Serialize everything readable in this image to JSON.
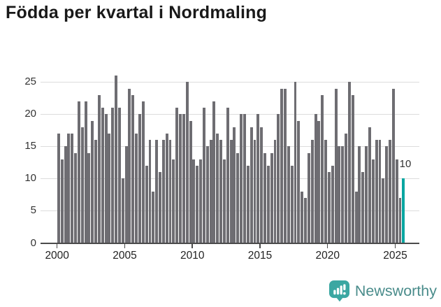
{
  "header": {
    "title": "Födda per kvartal i Nordmaling"
  },
  "footer": {
    "brand": "Newsworthy"
  },
  "colors": {
    "bar": "#6e6d72",
    "highlight": "#09a6a1",
    "grid": "#dcdcdc",
    "axis": "#4b4b4b",
    "title": "#191919",
    "xtick_label": "#222222",
    "ytick_label": "#333333",
    "annotation": "#333333",
    "brand_icon": "#3ba7a2",
    "brand_text": "#4a8c8b"
  },
  "chart_data": {
    "type": "bar",
    "title": "Födda per kvartal i Nordmaling",
    "xlabel": "",
    "ylabel": "",
    "x_start": "2000 Q1",
    "x_end": "2025 Q3",
    "xticks": [
      2000,
      2005,
      2010,
      2015,
      2020,
      2025
    ],
    "yticks": [
      0,
      5,
      10,
      15,
      20,
      25
    ],
    "ylim": [
      0,
      27.4
    ],
    "grid": "horizontal",
    "legend": "none",
    "values_by_year": [
      {
        "year": 2000,
        "values": [
          17,
          13,
          15,
          17
        ]
      },
      {
        "year": 2001,
        "values": [
          17,
          14,
          22,
          18
        ]
      },
      {
        "year": 2002,
        "values": [
          22,
          14,
          19,
          16
        ]
      },
      {
        "year": 2003,
        "values": [
          23,
          21,
          20,
          17
        ]
      },
      {
        "year": 2004,
        "values": [
          21,
          26,
          21,
          10
        ]
      },
      {
        "year": 2005,
        "values": [
          15,
          24,
          23,
          17
        ]
      },
      {
        "year": 2006,
        "values": [
          20,
          22,
          12,
          16
        ]
      },
      {
        "year": 2007,
        "values": [
          8,
          16,
          11,
          16
        ]
      },
      {
        "year": 2008,
        "values": [
          17,
          16,
          13,
          21
        ]
      },
      {
        "year": 2009,
        "values": [
          20,
          20,
          25,
          19
        ]
      },
      {
        "year": 2010,
        "values": [
          13,
          12,
          13,
          21
        ]
      },
      {
        "year": 2011,
        "values": [
          15,
          16,
          22,
          17
        ]
      },
      {
        "year": 2012,
        "values": [
          16,
          13,
          21,
          16
        ]
      },
      {
        "year": 2013,
        "values": [
          18,
          14,
          20,
          20
        ]
      },
      {
        "year": 2014,
        "values": [
          12,
          18,
          16,
          20
        ]
      },
      {
        "year": 2015,
        "values": [
          18,
          14,
          12,
          14
        ]
      },
      {
        "year": 2016,
        "values": [
          16,
          20,
          24,
          24
        ]
      },
      {
        "year": 2017,
        "values": [
          15,
          12,
          25,
          19
        ]
      },
      {
        "year": 2018,
        "values": [
          8,
          7,
          14,
          16
        ]
      },
      {
        "year": 2019,
        "values": [
          20,
          19,
          23,
          16
        ]
      },
      {
        "year": 2020,
        "values": [
          11,
          12,
          24,
          15
        ]
      },
      {
        "year": 2021,
        "values": [
          15,
          17,
          25,
          23
        ]
      },
      {
        "year": 2022,
        "values": [
          8,
          15,
          11,
          15
        ]
      },
      {
        "year": 2023,
        "values": [
          18,
          13,
          16,
          16
        ]
      },
      {
        "year": 2024,
        "values": [
          10,
          15,
          16,
          24
        ]
      },
      {
        "year": 2025,
        "values": [
          13,
          7,
          10
        ]
      }
    ],
    "highlight": {
      "position": "last_bar",
      "quarter": "2025 Q3",
      "value": 10,
      "annotation": "10"
    }
  }
}
